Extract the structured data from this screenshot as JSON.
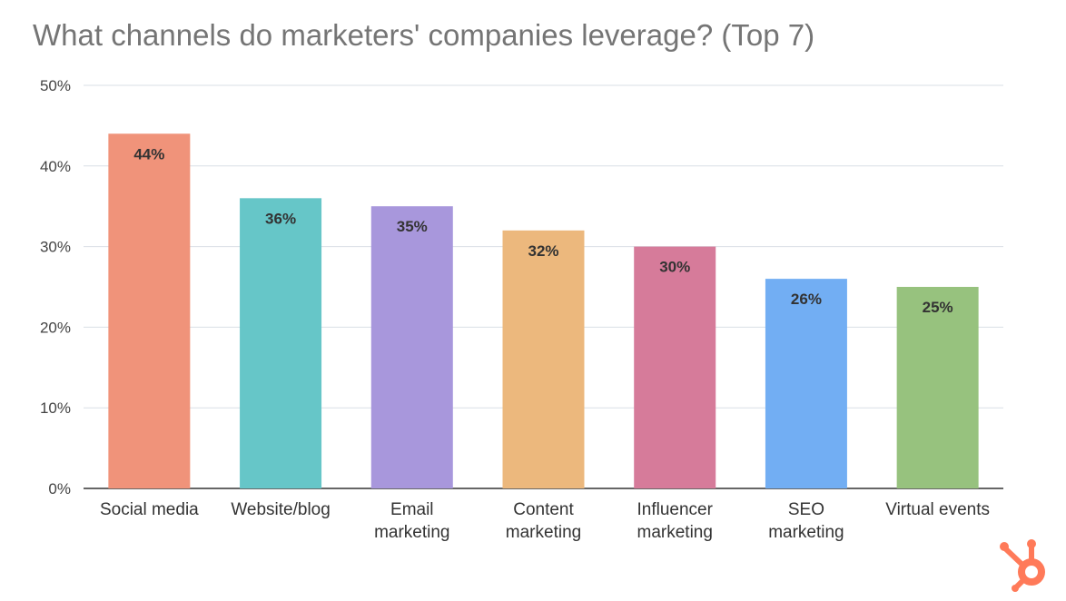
{
  "chart_data": {
    "type": "bar",
    "title": "What channels do marketers' companies leverage? (Top 7)",
    "xlabel": "",
    "ylabel": "",
    "ylim": [
      0,
      50
    ],
    "yticks": [
      "0%",
      "10%",
      "20%",
      "30%",
      "40%",
      "50%"
    ],
    "grid": true,
    "legend": "none",
    "categories": [
      [
        "Social media"
      ],
      [
        "Website/blog"
      ],
      [
        "Email",
        "marketing"
      ],
      [
        "Content",
        "marketing"
      ],
      [
        "Influencer",
        "marketing"
      ],
      [
        "SEO",
        "marketing"
      ],
      [
        "Virtual events"
      ]
    ],
    "values": [
      44,
      36,
      35,
      32,
      30,
      26,
      25
    ],
    "data_labels": [
      "44%",
      "36%",
      "35%",
      "32%",
      "30%",
      "26%",
      "25%"
    ],
    "colors": [
      "#f0937a",
      "#66c6c8",
      "#a897dc",
      "#ecb87d",
      "#d67b9a",
      "#72aef3",
      "#97c27e"
    ]
  },
  "logo": {
    "name": "hubspot-sprocket-icon",
    "color": "#ff7a59"
  }
}
